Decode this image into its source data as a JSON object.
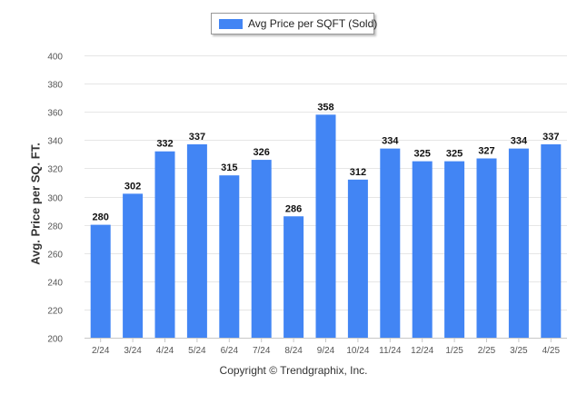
{
  "legend": {
    "label": "Avg Price per SQFT (Sold)",
    "color": "#4285f4"
  },
  "copyright": "Copyright © Trendgraphix, Inc.",
  "chart_data": {
    "type": "bar",
    "title": "",
    "xlabel": "",
    "ylabel": "Avg. Price per SQ. FT.",
    "ylim": [
      200,
      400
    ],
    "yticks": [
      200,
      220,
      240,
      260,
      280,
      300,
      320,
      340,
      360,
      380,
      400
    ],
    "grid": true,
    "legend_position": "top-center",
    "categories": [
      "2/24",
      "3/24",
      "4/24",
      "5/24",
      "6/24",
      "7/24",
      "8/24",
      "9/24",
      "10/24",
      "11/24",
      "12/24",
      "1/25",
      "2/25",
      "3/25",
      "4/25"
    ],
    "series": [
      {
        "name": "Avg Price per SQFT (Sold)",
        "color": "#4285f4",
        "values": [
          280,
          302,
          332,
          337,
          315,
          326,
          286,
          358,
          312,
          334,
          325,
          325,
          327,
          334,
          337
        ]
      }
    ]
  }
}
